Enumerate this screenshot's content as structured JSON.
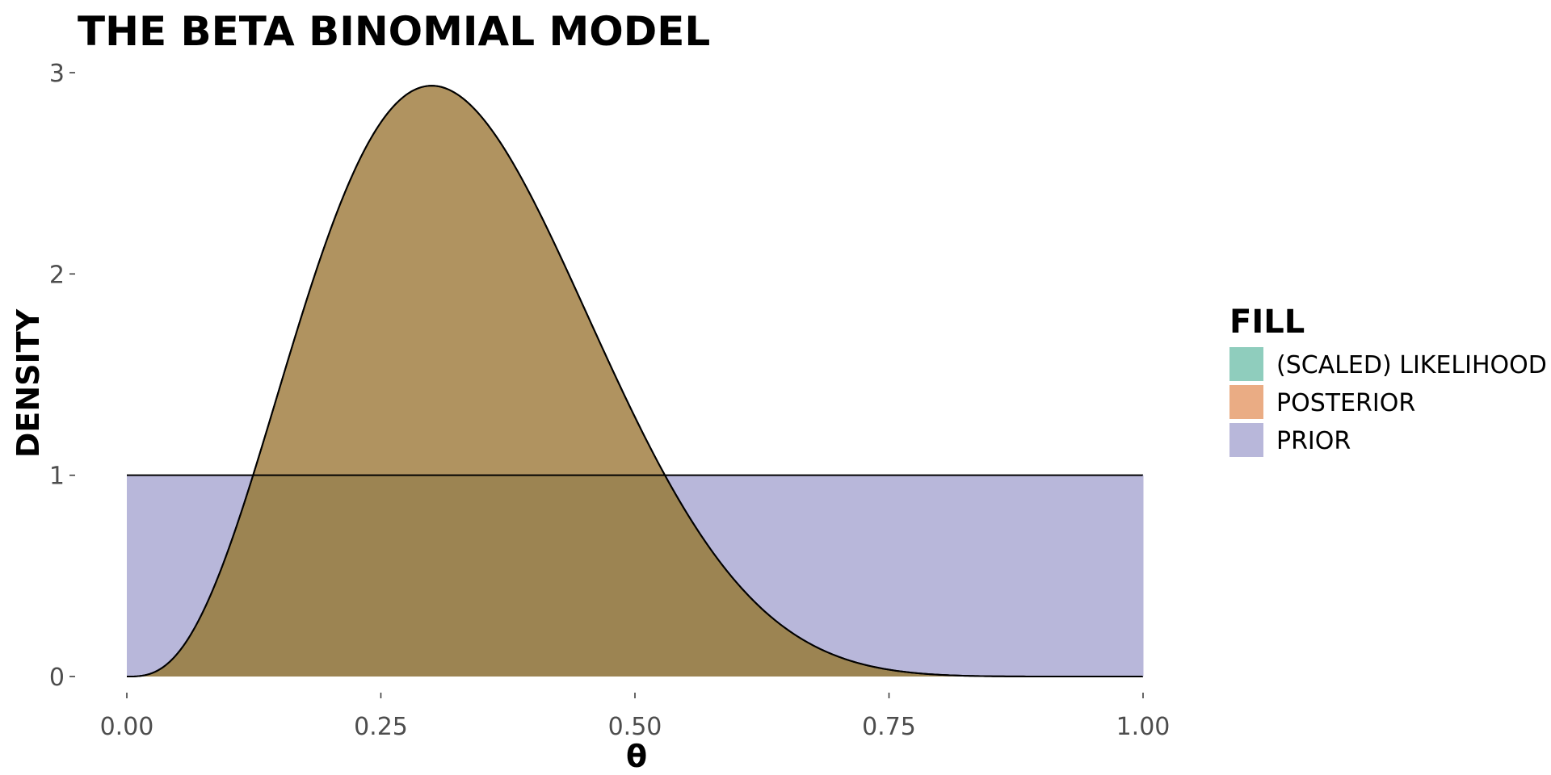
{
  "chart_data": {
    "type": "area",
    "title": "THE BETA BINOMIAL MODEL",
    "xlabel": "θ",
    "ylabel": "DENSITY",
    "xlim": [
      0,
      1
    ],
    "ylim": [
      0,
      3
    ],
    "x_ticks": [
      0,
      0.25,
      0.5,
      0.75,
      1
    ],
    "x_tick_labels": [
      "0.00",
      "0.25",
      "0.50",
      "0.75",
      "1.00"
    ],
    "y_ticks": [
      0,
      1,
      2,
      3
    ],
    "y_tick_labels": [
      "0",
      "1",
      "2",
      "3"
    ],
    "grid": false,
    "legend": {
      "title": "FILL",
      "position": "right",
      "entries": [
        {
          "label": "(SCALED) LIKELIHOOD",
          "color": "#8fcdbd"
        },
        {
          "label": "POSTERIOR",
          "color": "#eaac84"
        },
        {
          "label": "PRIOR",
          "color": "#b8b7da"
        }
      ]
    },
    "series": [
      {
        "name": "PRIOR",
        "distribution": "beta",
        "params": {
          "alpha": 1,
          "beta": 1
        },
        "fill": "#b8b7da"
      },
      {
        "name": "(SCALED) LIKELIHOOD",
        "distribution": "beta",
        "params": {
          "alpha": 4,
          "beta": 8
        },
        "fill": "#8fcdbd"
      },
      {
        "name": "POSTERIOR",
        "distribution": "beta",
        "params": {
          "alpha": 4,
          "beta": 8
        },
        "fill": "#eaac84"
      }
    ],
    "overlap_color": "#b09360",
    "overlap_with_prior_color": "#9c8452"
  }
}
